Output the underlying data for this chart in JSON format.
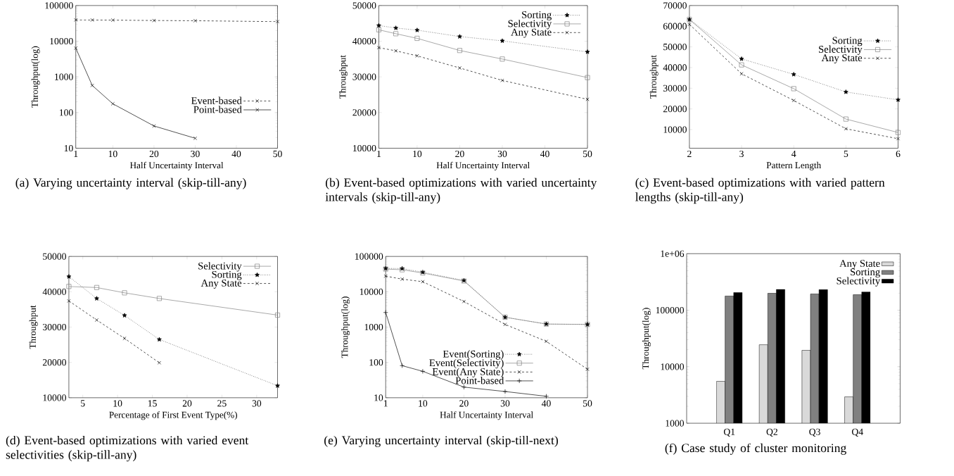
{
  "chart_data": [
    {
      "type": "line",
      "title": "(a) Varying uncertainty interval (skip-till-any)",
      "xlabel": "Half Uncertainty Interval",
      "ylabel": "Throughput(log)",
      "x": [
        1,
        5,
        10,
        20,
        30,
        50
      ],
      "xlim": [
        1,
        50
      ],
      "xticks": [
        1,
        10,
        20,
        30,
        40,
        50
      ],
      "ylim": [
        10,
        100000
      ],
      "yticks": [
        10,
        100,
        1000,
        10000,
        100000
      ],
      "log": true,
      "legend": "bottom right",
      "series": [
        {
          "name": "Event-based",
          "color": "#000000",
          "marker": "cross",
          "line_style": "dashed",
          "values": [
            39500,
            39300,
            39000,
            38000,
            37500,
            35300
          ]
        },
        {
          "name": "Point-based",
          "color": "#000000",
          "marker": "cross",
          "line_style": "solid",
          "values": [
            6400,
            575,
            176,
            42,
            19,
            null
          ]
        }
      ]
    },
    {
      "type": "line",
      "title": "(b) Event-based optimizations with varied uncertainty intervals (skip-till-any)",
      "xlabel": "Half Uncertainty Interval",
      "ylabel": "Throughput",
      "x": [
        1,
        5,
        10,
        20,
        30,
        50
      ],
      "xlim": [
        1,
        50
      ],
      "xticks": [
        1,
        10,
        20,
        30,
        40,
        50
      ],
      "ylim": [
        10000,
        50000
      ],
      "yticks": [
        10000,
        20000,
        30000,
        40000,
        50000
      ],
      "legend": "top right",
      "series": [
        {
          "name": "Sorting",
          "color": "#000000",
          "marker": "star",
          "line_style": "dotted",
          "values": [
            44400,
            43700,
            43100,
            41300,
            40100,
            37000
          ]
        },
        {
          "name": "Selectivity",
          "color": "#808080",
          "marker": "square",
          "line_style": "solid",
          "values": [
            43200,
            42100,
            40800,
            37400,
            35000,
            29800
          ]
        },
        {
          "name": "Any State",
          "color": "#000000",
          "marker": "cross",
          "line_style": "dashed",
          "values": [
            38200,
            37300,
            35900,
            32500,
            29000,
            23700
          ]
        }
      ]
    },
    {
      "type": "line",
      "title": "(c) Event-based optimizations with varied pattern lengths (skip-till-any)",
      "xlabel": "Pattern Length",
      "ylabel": "Throughput",
      "x": [
        2,
        3,
        4,
        5,
        6
      ],
      "xlim": [
        2,
        6
      ],
      "xticks": [
        2,
        3,
        4,
        5,
        6
      ],
      "ylim": [
        1000,
        70000
      ],
      "yticks": [
        10000,
        20000,
        30000,
        40000,
        50000,
        60000,
        70000
      ],
      "legend": "right",
      "series": [
        {
          "name": "Sorting",
          "color": "#000000",
          "marker": "star",
          "line_style": "dotted",
          "values": [
            63300,
            44200,
            36700,
            28200,
            24400
          ]
        },
        {
          "name": "Selectivity",
          "color": "#808080",
          "marker": "square",
          "line_style": "solid",
          "values": [
            63300,
            41300,
            29800,
            15100,
            8600
          ]
        },
        {
          "name": "Any State",
          "color": "#000000",
          "marker": "cross",
          "line_style": "dashed",
          "values": [
            60900,
            37000,
            24100,
            10400,
            5600
          ]
        }
      ]
    },
    {
      "type": "line",
      "title": "(d) Event-based optimizations with varied event selectivities (skip-till-any)",
      "xlabel": "Percentage of First Event Type(%)",
      "ylabel": "Throughput",
      "x": [
        3,
        7,
        11,
        16,
        33
      ],
      "xlim": [
        3,
        33
      ],
      "xticks": [
        5,
        10,
        15,
        20,
        25,
        30
      ],
      "ylim": [
        10000,
        50000
      ],
      "yticks": [
        10000,
        20000,
        30000,
        40000,
        50000
      ],
      "legend": "top right",
      "series": [
        {
          "name": "Selectivity",
          "color": "#808080",
          "marker": "square",
          "line_style": "solid",
          "values": [
            41500,
            41200,
            39700,
            38100,
            33400
          ]
        },
        {
          "name": "Sorting",
          "color": "#000000",
          "marker": "star",
          "line_style": "dotted",
          "values": [
            44300,
            38100,
            33300,
            26500,
            13400
          ]
        },
        {
          "name": "Any State",
          "color": "#000000",
          "marker": "cross",
          "line_style": "dashed",
          "values": [
            37400,
            32000,
            26800,
            19900,
            null
          ]
        }
      ]
    },
    {
      "type": "line",
      "title": "(e) Varying uncertainty interval (skip-till-next)",
      "xlabel": "Half Uncertainty Interval",
      "ylabel": "Throughput(log)",
      "x": [
        1,
        5,
        10,
        20,
        30,
        40,
        50
      ],
      "xlim": [
        1,
        50
      ],
      "xticks": [
        1,
        10,
        20,
        30,
        40,
        50
      ],
      "ylim": [
        10,
        100000
      ],
      "yticks": [
        10,
        100,
        1000,
        10000,
        100000
      ],
      "log": true,
      "legend": "bottom",
      "series": [
        {
          "name": "Event(Sorting)",
          "color": "#000000",
          "marker": "star",
          "line_style": "dotted",
          "values": [
            46000,
            45500,
            35700,
            20900,
            1900,
            1220,
            1190
          ]
        },
        {
          "name": "Event(Selectivity)",
          "color": "#808080",
          "marker": "square",
          "line_style": "solid",
          "values": [
            44000,
            42000,
            34000,
            20200,
            1900,
            1220,
            1190
          ]
        },
        {
          "name": "Event(Any State)",
          "color": "#000000",
          "marker": "cross",
          "line_style": "dashed",
          "values": [
            27700,
            22800,
            19300,
            5300,
            1190,
            395,
            64
          ]
        },
        {
          "name": "Point-based",
          "color": "#000000",
          "marker": "plus",
          "line_style": "solid",
          "values": [
            2590,
            81,
            56,
            20,
            15,
            11,
            null
          ]
        }
      ]
    },
    {
      "type": "bar",
      "title": "(f) Case study of cluster monitoring",
      "ylabel": "Throughput(log)",
      "categories": [
        "Q1",
        "Q2",
        "Q3",
        "Q4"
      ],
      "ylim": [
        1000,
        1000000
      ],
      "yticks": [
        1000,
        10000,
        100000,
        {
          "value": 1000000,
          "label": "1e+06"
        }
      ],
      "log": true,
      "legend": "top right",
      "series": [
        {
          "name": "Any State",
          "color": "#d9d9d9",
          "values": [
            5520,
            24500,
            19500,
            2930
          ]
        },
        {
          "name": "Sorting",
          "color": "#808080",
          "values": [
            178000,
            199000,
            194000,
            188000
          ]
        },
        {
          "name": "Selectivity",
          "color": "#000000",
          "values": [
            205000,
            233000,
            231000,
            210000
          ]
        }
      ]
    }
  ]
}
